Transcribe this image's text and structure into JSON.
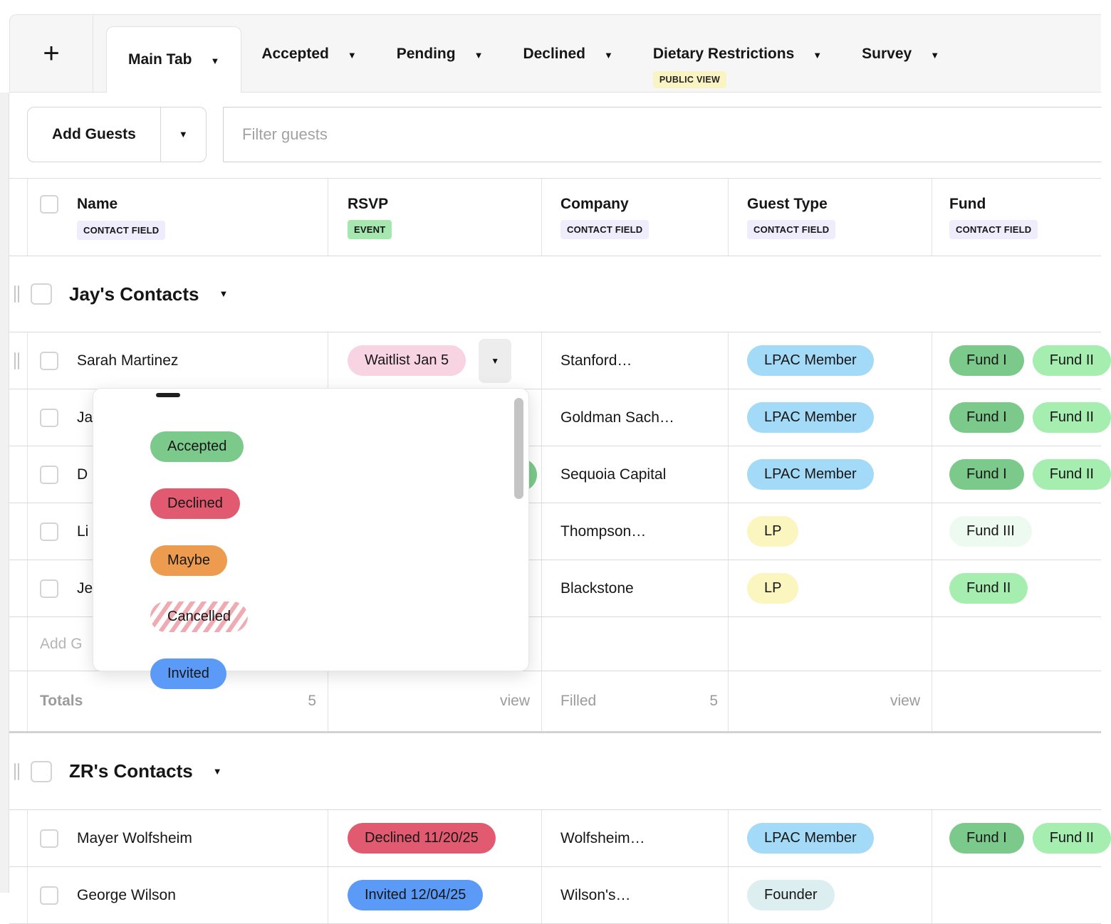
{
  "tabs": {
    "new_tab_label": "+",
    "items": [
      {
        "label": "Main Tab",
        "active": true
      },
      {
        "label": "Accepted"
      },
      {
        "label": "Pending"
      },
      {
        "label": "Declined"
      },
      {
        "label": "Dietary Restrictions",
        "badge": "PUBLIC VIEW"
      },
      {
        "label": "Survey"
      }
    ]
  },
  "toolbar": {
    "add_guests_label": "Add Guests",
    "filter_placeholder": "Filter guests"
  },
  "table": {
    "columns": [
      {
        "title": "Name",
        "tag": "CONTACT FIELD"
      },
      {
        "title": "RSVP",
        "tag": "EVENT"
      },
      {
        "title": "Company",
        "tag": "CONTACT FIELD"
      },
      {
        "title": "Guest Type",
        "tag": "CONTACT FIELD"
      },
      {
        "title": "Fund",
        "tag": "CONTACT FIELD"
      }
    ]
  },
  "rsvp_dropdown": {
    "options": [
      {
        "label": "Accepted",
        "color": "#7cca8b"
      },
      {
        "label": "Declined",
        "color": "#e25a70"
      },
      {
        "label": "Maybe",
        "color": "#ec9b4f"
      },
      {
        "label": "Cancelled",
        "color": "white-red-stripes"
      },
      {
        "label": "Invited",
        "color": "#5b9bf7"
      }
    ]
  },
  "groups": [
    {
      "title": "Jay's Contacts",
      "rows": [
        {
          "name": "Sarah Martinez",
          "rsvp": "Waitlist Jan 5",
          "company": "Stanford…",
          "guest_type": "LPAC Member",
          "funds": [
            "Fund I",
            "Fund II"
          ]
        },
        {
          "name": "Ja",
          "company": "Goldman Sach…",
          "guest_type": "LPAC Member",
          "funds": [
            "Fund I",
            "Fund II"
          ]
        },
        {
          "name": "D",
          "company": "Sequoia Capital",
          "guest_type": "LPAC Member",
          "funds": [
            "Fund I",
            "Fund II"
          ]
        },
        {
          "name": "Li",
          "company": "Thompson…",
          "guest_type": "LP",
          "funds": [
            "Fund III"
          ]
        },
        {
          "name": "Je",
          "company": "Blackstone",
          "guest_type": "LP",
          "funds": [
            "Fund II"
          ]
        }
      ],
      "add_row_label": "Add G",
      "totals": {
        "label": "Totals",
        "count": "5",
        "rsvp_link": "view",
        "filled_label": "Filled",
        "filled_count": "5",
        "guest_type_link": "view"
      }
    },
    {
      "title": "ZR's Contacts",
      "rows": [
        {
          "name": "Mayer Wolfsheim",
          "rsvp": "Declined 11/20/25",
          "company": "Wolfsheim…",
          "guest_type": "LPAC Member",
          "funds": [
            "Fund I",
            "Fund II"
          ]
        },
        {
          "name": "George Wilson",
          "rsvp": "Invited 12/04/25",
          "company": "Wilson's…",
          "guest_type": "Founder",
          "funds": []
        }
      ]
    }
  ],
  "colors": {
    "accepted_green": "#7cca8b",
    "light_green": "#a6edb0",
    "pale_green": "#edfaf0",
    "invited_blue": "#5b9bf7",
    "lpac_blue": "#a3daf7",
    "lp_yellow": "#fbf5bf",
    "waitlist_pink": "#f8d3e2",
    "declined_red": "#e25a70",
    "maybe_orange": "#ec9b4f",
    "founder_teal": "#dceef0",
    "contact_field_lavender": "#efecfb",
    "event_green": "#a6e7b0",
    "public_view_yellow": "#faf3c4"
  }
}
